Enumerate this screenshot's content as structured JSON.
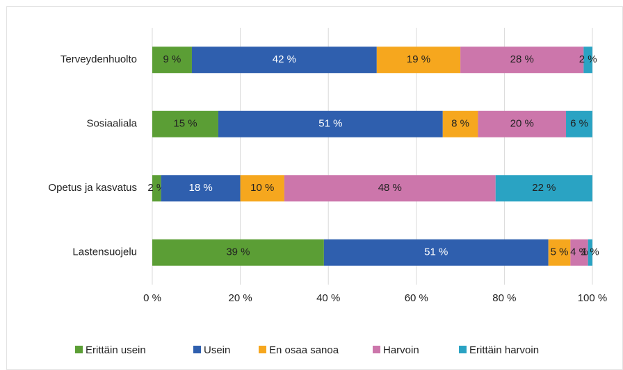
{
  "chart_data": {
    "type": "stacked_bar_horizontal",
    "categories": [
      "Terveydenhuolto",
      "Sosiaaliala",
      "Opetus ja kasvatus",
      "Lastensuojelu"
    ],
    "series": [
      {
        "name": "Erittäin usein",
        "color": "#5b9e35",
        "values": [
          9,
          15,
          2,
          39
        ],
        "value_labels": [
          "9 %",
          "15 %",
          "2 %",
          "39 %"
        ]
      },
      {
        "name": "Usein",
        "color": "#2f5fae",
        "values": [
          42,
          51,
          18,
          51
        ],
        "value_labels": [
          "42 %",
          "51 %",
          "18 %",
          "51 %"
        ]
      },
      {
        "name": "En osaa sanoa",
        "color": "#f6a71e",
        "values": [
          19,
          8,
          10,
          5
        ],
        "value_labels": [
          "19 %",
          "8 %",
          "10 %",
          "5 %"
        ]
      },
      {
        "name": "Harvoin",
        "color": "#cc76ab",
        "values": [
          28,
          20,
          48,
          4
        ],
        "value_labels": [
          "28 %",
          "20 %",
          "48 %",
          "4 %"
        ]
      },
      {
        "name": "Erittäin harvoin",
        "color": "#2aa3c3",
        "values": [
          2,
          6,
          22,
          1
        ],
        "value_labels": [
          "2 %",
          "6 %",
          "22 %",
          "1 %"
        ]
      }
    ],
    "xlim": [
      0,
      100
    ],
    "xticks": [
      {
        "value": 0,
        "label": "0 %"
      },
      {
        "value": 20,
        "label": "20 %"
      },
      {
        "value": 40,
        "label": "40 %"
      },
      {
        "value": 60,
        "label": "60 %"
      },
      {
        "value": 80,
        "label": "80 %"
      },
      {
        "value": 100,
        "label": "100 %"
      }
    ],
    "grid": true,
    "legend": "bottom"
  }
}
